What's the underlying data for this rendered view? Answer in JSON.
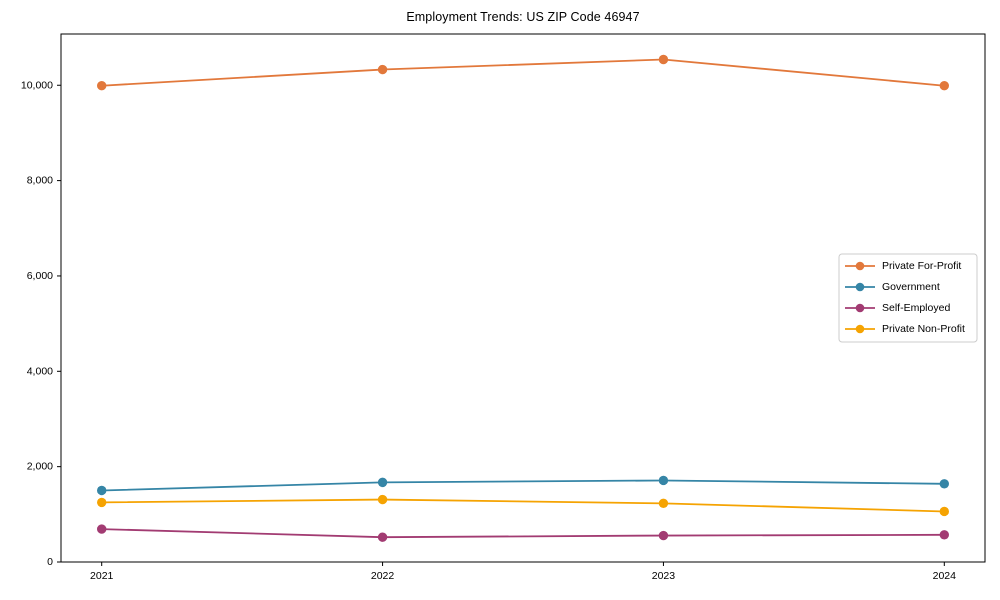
{
  "chart_data": {
    "type": "line",
    "title": "Employment Trends: US ZIP Code 46947",
    "categories": [
      "2021",
      "2022",
      "2023",
      "2024"
    ],
    "series": [
      {
        "name": "Private For-Profit",
        "color": "#E2783B",
        "values": [
          9990,
          10330,
          10540,
          9990
        ]
      },
      {
        "name": "Government",
        "color": "#3585A6",
        "values": [
          1500,
          1670,
          1710,
          1640
        ]
      },
      {
        "name": "Self-Employed",
        "color": "#A23B72",
        "values": [
          690,
          520,
          555,
          570
        ]
      },
      {
        "name": "Private Non-Profit",
        "color": "#F5A302",
        "values": [
          1250,
          1310,
          1230,
          1060
        ]
      }
    ],
    "xlabel": "",
    "ylabel": "",
    "ylim": [
      0,
      11075
    ],
    "yticks": [
      0,
      2000,
      4000,
      6000,
      8000,
      10000
    ],
    "ytick_labels": [
      "0",
      "2,000",
      "4,000",
      "6,000",
      "8,000",
      "10,000"
    ],
    "grid": false,
    "legend_position": "center-right",
    "marker": "circle",
    "axis_color": "#000000",
    "legend_border_color": "#cccccc"
  }
}
